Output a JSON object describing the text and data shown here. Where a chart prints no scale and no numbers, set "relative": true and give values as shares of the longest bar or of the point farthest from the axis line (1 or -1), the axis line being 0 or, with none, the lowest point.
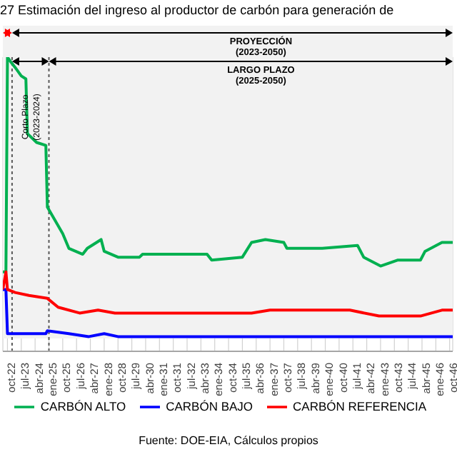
{
  "chart_data": {
    "type": "line",
    "title": "27  Estimación del ingreso al productor de carbón para generación de",
    "relative": true,
    "grid": true,
    "legend": "bottom",
    "marker": "none",
    "line_style": "solid",
    "xlim": [
      "2022-07",
      "2046-12"
    ],
    "xticks": [
      {
        "value": "2022-10",
        "label": "oct-22"
      },
      {
        "value": "2023-07",
        "label": "jul-23"
      },
      {
        "value": "2024-04",
        "label": "abr-24"
      },
      {
        "value": "2025-01",
        "label": "ene-25"
      },
      {
        "value": "2025-10",
        "label": "oct-25"
      },
      {
        "value": "2026-07",
        "label": "jul-26"
      },
      {
        "value": "2027-04",
        "label": "abr-27"
      },
      {
        "value": "2028-01",
        "label": "ene-28"
      },
      {
        "value": "2028-10",
        "label": "oct-28"
      },
      {
        "value": "2029-07",
        "label": "jul-29"
      },
      {
        "value": "2030-04",
        "label": "abr-30"
      },
      {
        "value": "2031-01",
        "label": "ene-31"
      },
      {
        "value": "2031-10",
        "label": "oct-31"
      },
      {
        "value": "2032-07",
        "label": "jul-32"
      },
      {
        "value": "2033-04",
        "label": "abr-33"
      },
      {
        "value": "2034-01",
        "label": "ene-34"
      },
      {
        "value": "2034-10",
        "label": "oct-34"
      },
      {
        "value": "2035-07",
        "label": "jul-35"
      },
      {
        "value": "2036-04",
        "label": "abr-36"
      },
      {
        "value": "2037-01",
        "label": "ene-37"
      },
      {
        "value": "2037-10",
        "label": "oct-37"
      },
      {
        "value": "2038-07",
        "label": "jul-38"
      },
      {
        "value": "2039-04",
        "label": "abr-39"
      },
      {
        "value": "2040-01",
        "label": "ene-40"
      },
      {
        "value": "2040-10",
        "label": "oct-40"
      },
      {
        "value": "2041-07",
        "label": "jul-41"
      },
      {
        "value": "2042-04",
        "label": "abr-42"
      },
      {
        "value": "2043-01",
        "label": "ene-43"
      },
      {
        "value": "2043-10",
        "label": "oct-43"
      },
      {
        "value": "2044-07",
        "label": "jul-44"
      },
      {
        "value": "2045-04",
        "label": "abr-45"
      },
      {
        "value": "2046-01",
        "label": "ene-46"
      },
      {
        "value": "2046-10",
        "label": "oct-46"
      }
    ],
    "ref_lines": [
      {
        "axis": "x",
        "value": "2023-01",
        "color": "#595959",
        "line_style": "dotted"
      },
      {
        "axis": "x",
        "value": "2025-01",
        "color": "#595959",
        "line_style": "dotted"
      }
    ],
    "annotations": [
      "PROYECCIÓN (2023-2050)",
      "LARGO PLAZO (2025-2050)",
      "Corto Plazo (2023-2024)",
      "Fuente: DOE-EIA, Cálculos propios"
    ],
    "series": [
      {
        "name": "CARBÓN ALTO",
        "color": "#00b050",
        "x": [
          "2022-07",
          "2022-09",
          "2022-10",
          "2022-12",
          "2023-03",
          "2023-07",
          "2023-10",
          "2023-11",
          "2024-05",
          "2024-11",
          "2024-12",
          "2025-10",
          "2026-02",
          "2026-11",
          "2027-02",
          "2027-11",
          "2028-01",
          "2028-10",
          "2029-12",
          "2030-02",
          "2033-08",
          "2033-11",
          "2035-07",
          "2036-01",
          "2036-10",
          "2037-10",
          "2037-12",
          "2039-11",
          "2041-10",
          "2042-02",
          "2043-01",
          "2043-12",
          "2045-03",
          "2045-06",
          "2046-05",
          "2046-12"
        ],
        "values": [
          0.27,
          0.27,
          1.0,
          0.985,
          0.965,
          0.936,
          0.926,
          0.74,
          0.71,
          0.7,
          0.49,
          0.4,
          0.35,
          0.33,
          0.35,
          0.38,
          0.34,
          0.32,
          0.32,
          0.33,
          0.33,
          0.31,
          0.32,
          0.37,
          0.38,
          0.37,
          0.35,
          0.35,
          0.36,
          0.32,
          0.29,
          0.31,
          0.31,
          0.34,
          0.37,
          0.37
        ]
      },
      {
        "name": "CARBÓN BAJO",
        "color": "#0000ff",
        "x": [
          "2022-07",
          "2022-09",
          "2022-10",
          "2024-11",
          "2024-12",
          "2026-02",
          "2027-03",
          "2028-01",
          "2028-10",
          "2046-12"
        ],
        "values": [
          0.21,
          0.21,
          0.06,
          0.06,
          0.07,
          0.06,
          0.05,
          0.06,
          0.05,
          0.05
        ]
      },
      {
        "name": "CARBÓN REFERENCIA",
        "color": "#ff0000",
        "x": [
          "2022-07",
          "2022-09",
          "2022-10",
          "2023-03",
          "2023-12",
          "2024-12",
          "2025-07",
          "2026-09",
          "2027-09",
          "2028-08",
          "2036-01",
          "2037-01",
          "2041-05",
          "2042-12",
          "2045-03",
          "2046-05",
          "2046-12"
        ],
        "values": [
          0.21,
          0.27,
          0.21,
          0.2,
          0.19,
          0.18,
          0.15,
          0.13,
          0.14,
          0.13,
          0.13,
          0.14,
          0.14,
          0.12,
          0.12,
          0.14,
          0.14
        ]
      }
    ]
  }
}
